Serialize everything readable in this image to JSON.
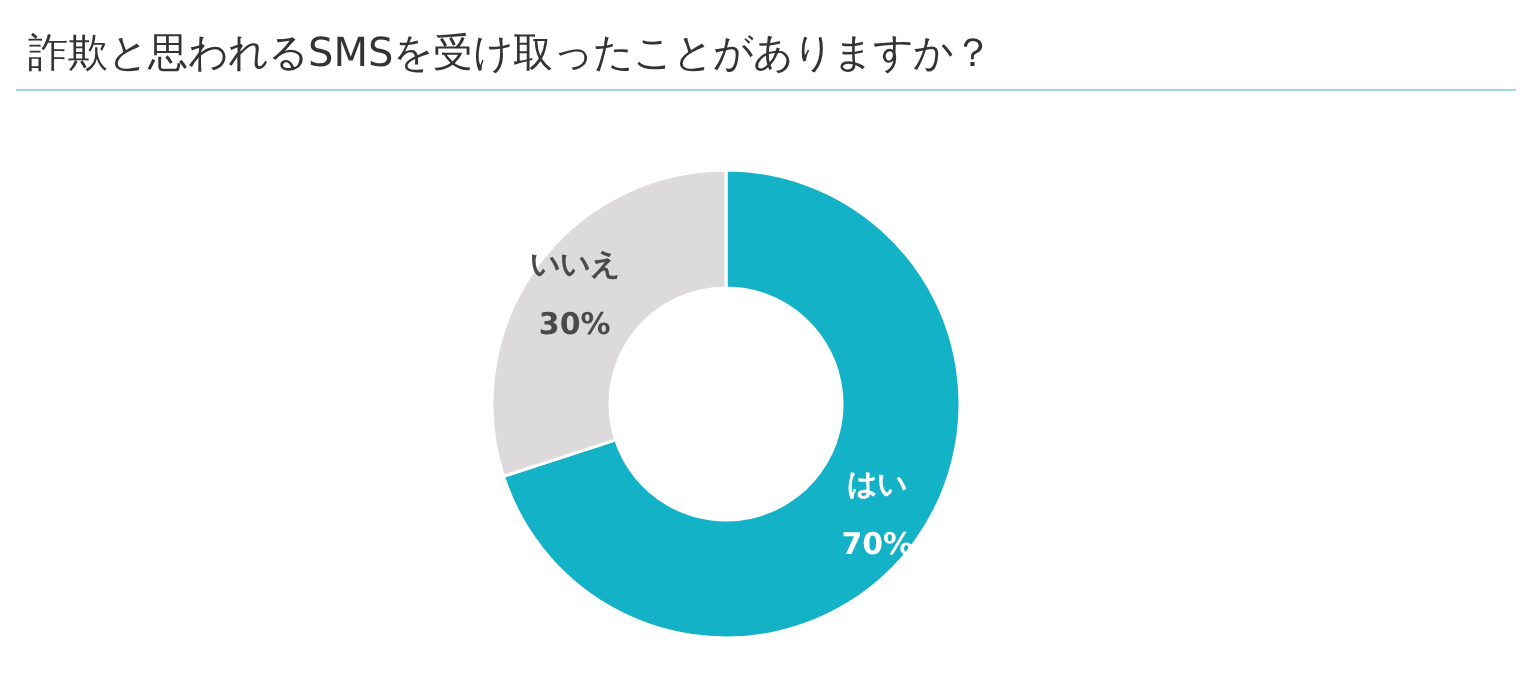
{
  "chart_data": {
    "type": "donut",
    "title": "詐欺と思われるSMSを受け取ったことがありますか？",
    "categories": [
      "はい",
      "いいえ"
    ],
    "values": [
      70,
      30
    ],
    "colors": [
      "#14b2c7",
      "#dcdadb"
    ],
    "value_labels": [
      "70%",
      "30%"
    ],
    "legend": false
  }
}
